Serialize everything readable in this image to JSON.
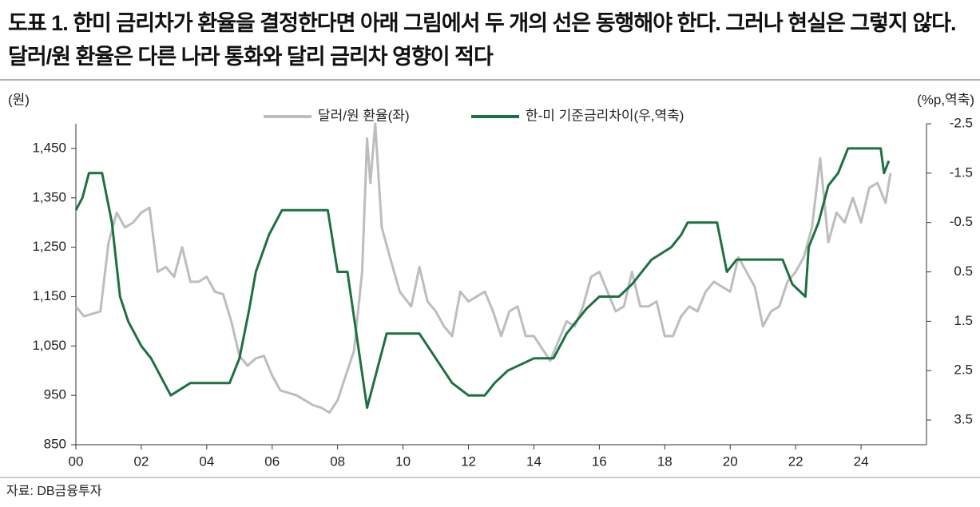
{
  "chart_data": {
    "type": "line",
    "title": "도표 1. 한미 금리차가 환율을 결정한다면 아래 그림에서 두 개의 선은 동행해야 한다. 그러나 현실은 그렇지 않다. 달러/원 환율은 다른 나라 통화와 달리 금리차 영향이 적다",
    "y_label": "(원)",
    "y2_label": "(%p,역축)",
    "source": "자료: DB금융투자",
    "xlim": [
      2000,
      2026
    ],
    "xticks": [
      {
        "value": 2000,
        "label": "00"
      },
      {
        "value": 2002,
        "label": "02"
      },
      {
        "value": 2004,
        "label": "04"
      },
      {
        "value": 2006,
        "label": "06"
      },
      {
        "value": 2008,
        "label": "08"
      },
      {
        "value": 2010,
        "label": "10"
      },
      {
        "value": 2012,
        "label": "12"
      },
      {
        "value": 2014,
        "label": "14"
      },
      {
        "value": 2016,
        "label": "16"
      },
      {
        "value": 2018,
        "label": "18"
      },
      {
        "value": 2020,
        "label": "20"
      },
      {
        "value": 2022,
        "label": "22"
      },
      {
        "value": 2024,
        "label": "24"
      }
    ],
    "ylim": [
      850,
      1500
    ],
    "yticks": [
      850,
      950,
      {
        "value": 1050,
        "label": "1,050"
      },
      {
        "value": 1150,
        "label": "1,150"
      },
      {
        "value": 1250,
        "label": "1,250"
      },
      {
        "value": 1350,
        "label": "1,350"
      },
      {
        "value": 1450,
        "label": "1,450"
      }
    ],
    "y2lim": [
      4,
      -2.5
    ],
    "y2ticks": [
      -2.5,
      -1.5,
      -0.5,
      0.5,
      1.5,
      2.5,
      3.5
    ],
    "legend": "top",
    "series": [
      {
        "name": "달러/원 환율(좌)",
        "color": "#bdbdbd",
        "x": [
          2000,
          2000.25,
          2000.5,
          2000.75,
          2001,
          2001.25,
          2001.5,
          2001.75,
          2002,
          2002.25,
          2002.5,
          2002.75,
          2003,
          2003.25,
          2003.5,
          2003.75,
          2004,
          2004.25,
          2004.5,
          2004.75,
          2005,
          2005.25,
          2005.5,
          2005.75,
          2006,
          2006.25,
          2006.5,
          2006.75,
          2007,
          2007.25,
          2007.5,
          2007.75,
          2008,
          2008.25,
          2008.5,
          2008.75,
          2008.9,
          2009,
          2009.15,
          2009.35,
          2009.6,
          2009.9,
          2010.25,
          2010.5,
          2010.75,
          2011,
          2011.25,
          2011.5,
          2011.75,
          2012,
          2012.5,
          2012.75,
          2013,
          2013.25,
          2013.5,
          2013.75,
          2014,
          2014.5,
          2014.75,
          2015,
          2015.25,
          2015.5,
          2015.75,
          2016,
          2016.25,
          2016.5,
          2016.75,
          2017,
          2017.25,
          2017.5,
          2017.75,
          2018,
          2018.25,
          2018.5,
          2018.75,
          2019,
          2019.25,
          2019.5,
          2019.75,
          2020,
          2020.25,
          2020.5,
          2020.75,
          2021,
          2021.25,
          2021.5,
          2021.75,
          2022,
          2022.25,
          2022.5,
          2022.75,
          2023,
          2023.25,
          2023.5,
          2023.75,
          2024,
          2024.25,
          2024.5,
          2024.75,
          2024.9
        ],
        "values": [
          1130,
          1110,
          1115,
          1120,
          1260,
          1320,
          1290,
          1300,
          1320,
          1330,
          1200,
          1210,
          1190,
          1250,
          1180,
          1180,
          1190,
          1160,
          1155,
          1100,
          1030,
          1010,
          1025,
          1030,
          990,
          960,
          955,
          950,
          940,
          930,
          925,
          915,
          940,
          990,
          1040,
          1200,
          1470,
          1380,
          1500,
          1290,
          1230,
          1160,
          1130,
          1210,
          1140,
          1120,
          1090,
          1070,
          1160,
          1140,
          1160,
          1120,
          1070,
          1120,
          1130,
          1070,
          1070,
          1020,
          1060,
          1100,
          1090,
          1130,
          1190,
          1200,
          1160,
          1120,
          1130,
          1200,
          1130,
          1130,
          1140,
          1070,
          1070,
          1110,
          1130,
          1120,
          1160,
          1180,
          1170,
          1160,
          1230,
          1200,
          1170,
          1090,
          1120,
          1130,
          1180,
          1200,
          1230,
          1290,
          1430,
          1260,
          1320,
          1300,
          1350,
          1300,
          1370,
          1380,
          1340,
          1400
        ]
      },
      {
        "name": "한-미 기준금리차이(우,역축)",
        "color": "#1e7042",
        "axis": "y2",
        "x": [
          2000,
          2000.2,
          2000.4,
          2000.8,
          2001.1,
          2001.35,
          2001.6,
          2002,
          2002.3,
          2002.9,
          2003.5,
          2004.7,
          2005,
          2005.3,
          2005.5,
          2005.9,
          2006.3,
          2006.7,
          2007.7,
          2008,
          2008.3,
          2008.9,
          2009,
          2009.5,
          2010.5,
          2011,
          2011.5,
          2012,
          2012.5,
          2012.8,
          2013.2,
          2014,
          2014.6,
          2015,
          2015.6,
          2016,
          2016.6,
          2017,
          2017.6,
          2018.2,
          2018.5,
          2018.7,
          2019.6,
          2019.9,
          2020.2,
          2021.6,
          2021.9,
          2022.3,
          2022.4,
          2022.7,
          2023,
          2023.3,
          2023.6,
          2024.6,
          2024.7,
          2024.85
        ],
        "values": [
          -0.75,
          -1,
          -1.5,
          -1.5,
          -0.5,
          1,
          1.5,
          2,
          2.25,
          3,
          2.75,
          2.75,
          2.25,
          1.25,
          0.5,
          -0.25,
          -0.75,
          -0.75,
          -0.75,
          0.5,
          0.5,
          3.25,
          3,
          1.75,
          1.75,
          2.25,
          2.75,
          3,
          3,
          2.75,
          2.5,
          2.25,
          2.25,
          1.75,
          1.25,
          1,
          1,
          0.75,
          0.25,
          0,
          -0.25,
          -0.5,
          -0.5,
          0.5,
          0.25,
          0.25,
          0.75,
          1,
          0,
          -0.5,
          -1.25,
          -1.5,
          -2,
          -2,
          -1.5,
          -1.75
        ]
      }
    ]
  }
}
